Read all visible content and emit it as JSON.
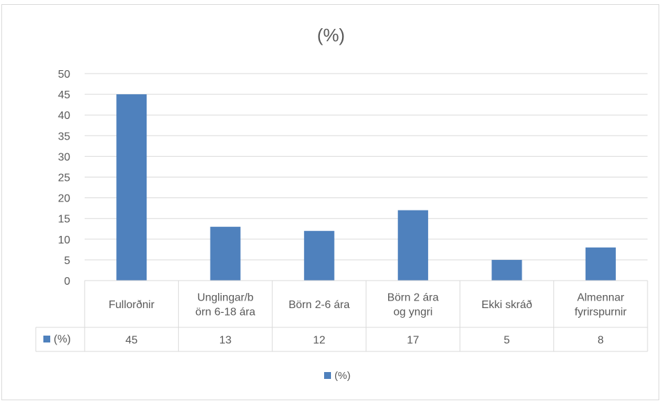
{
  "chart_data": {
    "type": "bar",
    "title": "(%)",
    "categories": [
      [
        "Fullorðnir"
      ],
      [
        "Unglingar/b",
        "örn 6-18 ára"
      ],
      [
        "Börn 2-6 ára"
      ],
      [
        "Börn 2 ára",
        "og yngri"
      ],
      [
        "Ekki skráð"
      ],
      [
        "Almennar",
        "fyrirspurnir"
      ]
    ],
    "series": [
      {
        "name": "(%)",
        "values": [
          45,
          13,
          12,
          17,
          5,
          8
        ],
        "color": "#4f81bd"
      }
    ],
    "ylim": [
      0,
      50
    ],
    "yticks": [
      0,
      5,
      10,
      15,
      20,
      25,
      30,
      35,
      40,
      45,
      50
    ],
    "grid": true,
    "data_table": true,
    "legend": {
      "position": "bottom",
      "label": "(%)"
    }
  }
}
